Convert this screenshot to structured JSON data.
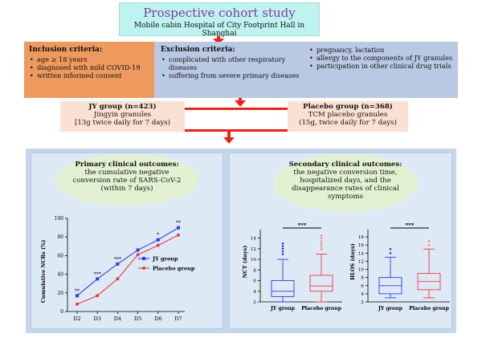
{
  "title": {
    "main": "Prospective cohort study",
    "sub": "Mobile cabin Hospital of City Footprint Hall in Shanghai"
  },
  "inclusion": {
    "title": "Inclusion criteria:",
    "items": [
      "age ≥ 18 years",
      "diagnosed with mild COVID-19",
      "written informed consent"
    ]
  },
  "exclusion": {
    "title": "Exclusion criteria:",
    "items_left": [
      "complicated with other respiratory diseases",
      "suffering from severe primary diseases"
    ],
    "items_right": [
      "pregnancy, lactation",
      "allergy to the components of JY granules",
      "participation in other clinical drug trials"
    ]
  },
  "groups": {
    "jy": {
      "title": "JY group (n=423)",
      "drug": "Jingyin granules",
      "dose": "[13g twice daily for 7 days)"
    },
    "placebo": {
      "title": "Placebo group (n=368)",
      "drug": "TCM placebo granules",
      "dose": "(15g, twice daily for 7 days)"
    }
  },
  "primary": {
    "title": "Primary clinical outcomes:",
    "text": "the cumulative negative conversion rate of SARS-CoV-2 (within 7 days)"
  },
  "secondary": {
    "title": "Secondary clinical outcomes:",
    "text": "the negative conversion time, hospitalized days, and the disappearance rates of clinical symptoms"
  },
  "colors": {
    "arrow": "#e8231b",
    "title_text": "#7b3aa8",
    "jy_series": "#2a3fe0",
    "placebo_series": "#ee3b3b"
  },
  "chart_data": [
    {
      "type": "line",
      "ylabel": "Cumulative NCRs (%)",
      "xlabel": "",
      "categories": [
        "D2",
        "D3",
        "D4",
        "D5",
        "D6",
        "D7"
      ],
      "ylim": [
        0,
        100
      ],
      "yticks": [
        "0",
        "20",
        "40",
        "60",
        "80",
        "100"
      ],
      "series": [
        {
          "name": "JY group",
          "values": [
            17,
            35,
            51,
            66,
            77,
            90
          ]
        },
        {
          "name": "Placebo group",
          "values": [
            8,
            17,
            35,
            61,
            71,
            82
          ]
        }
      ],
      "significance": [
        "**",
        "***",
        "***",
        "",
        "*",
        "**"
      ],
      "legend": "center-right"
    },
    {
      "type": "box",
      "ylabel": "NCT (days)",
      "ylim": [
        2,
        15
      ],
      "yticks": [
        "2",
        "4",
        "6",
        "8",
        "10",
        "12",
        "14"
      ],
      "categories": [
        "JY group",
        "Placebo group"
      ],
      "boxes": [
        {
          "min": 2,
          "q1": 3,
          "median": 4,
          "q3": 6,
          "max": 10,
          "outliers": [
            11,
            11.5,
            12,
            12.5,
            13
          ]
        },
        {
          "min": 2,
          "q1": 4,
          "median": 5,
          "q3": 7,
          "max": 11,
          "outliers": [
            12,
            12.5,
            13,
            13.5,
            14,
            14.5
          ]
        }
      ],
      "significance": "***"
    },
    {
      "type": "box",
      "ylabel": "HLOS (days)",
      "ylim": [
        2,
        19
      ],
      "yticks": [
        "2",
        "4",
        "6",
        "8",
        "10",
        "12",
        "14",
        "16",
        "18"
      ],
      "categories": [
        "JY group",
        "Placebo group"
      ],
      "boxes": [
        {
          "min": 3,
          "q1": 4,
          "median": 6,
          "q3": 8,
          "max": 13,
          "outliers": [
            14,
            15
          ]
        },
        {
          "min": 3,
          "q1": 5,
          "median": 7,
          "q3": 9,
          "max": 15,
          "outliers": [
            16,
            17
          ]
        }
      ],
      "significance": "***"
    }
  ]
}
